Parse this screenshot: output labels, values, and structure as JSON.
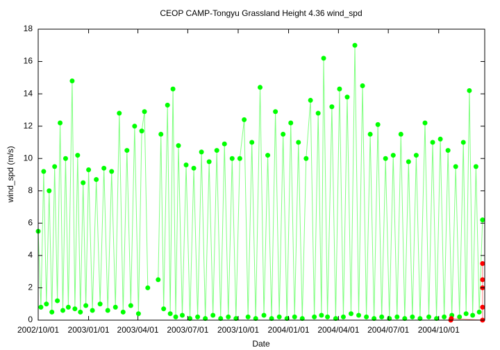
{
  "chart_data": {
    "type": "line",
    "title": "CEOP CAMP-Tongyu Grassland Height 4.36 wind_spd",
    "x_label": "Date",
    "y_label": "wind_spd (m/s)",
    "xlim": [
      "2002/10/01",
      "2004/12/24"
    ],
    "xticks": [
      "2002/10/01",
      "2003/01/01",
      "2003/04/01",
      "2003/07/01",
      "2003/10/01",
      "2004/01/01",
      "2004/04/01",
      "2004/07/01",
      "2004/10/01"
    ],
    "ylim": [
      0,
      18
    ],
    "yticks": [
      0,
      2,
      4,
      6,
      8,
      10,
      12,
      14,
      16,
      18
    ],
    "series": [
      {
        "color": "#00ff00",
        "x": [
          "2002/10/01",
          "2002/10/06",
          "2002/10/11",
          "2002/10/16",
          "2002/10/21",
          "2002/10/26",
          "2002/10/31",
          "2002/11/05",
          "2002/11/10",
          "2002/11/15",
          "2002/11/20",
          "2002/11/25",
          "2002/12/02",
          "2002/12/07",
          "2002/12/12",
          "2002/12/17",
          "2002/12/22",
          "2002/12/27",
          "2003/01/01",
          "2003/01/08",
          "2003/01/15",
          "2003/01/22",
          "2003/01/29",
          "2003/02/05",
          "2003/02/12",
          "2003/02/19",
          "2003/02/26",
          "2003/03/05",
          "2003/03/12",
          "2003/03/19",
          "2003/03/26",
          "2003/04/02",
          "2003/04/08",
          "2003/04/13",
          "2003/04/19",
          "2003/04/28",
          "2003/05/08",
          "2003/05/13",
          "2003/05/18",
          "2003/05/25",
          "2003/05/30",
          "2003/06/04",
          "2003/06/09",
          "2003/06/14",
          "2003/06/21",
          "2003/06/28",
          "2003/07/05",
          "2003/07/12",
          "2003/07/19",
          "2003/07/26",
          "2003/08/02",
          "2003/08/09",
          "2003/08/16",
          "2003/08/23",
          "2003/08/30",
          "2003/09/06",
          "2003/09/13",
          "2003/09/20",
          "2003/09/27",
          "2003/10/04",
          "2003/10/12",
          "2003/10/19",
          "2003/10/26",
          "2003/11/02",
          "2003/11/10",
          "2003/11/17",
          "2003/11/24",
          "2003/12/01",
          "2003/12/08",
          "2003/12/15",
          "2003/12/22",
          "2003/12/29",
          "2004/01/05",
          "2004/01/12",
          "2004/01/19",
          "2004/01/26",
          "2004/02/02",
          "2004/02/10",
          "2004/02/17",
          "2004/02/24",
          "2004/03/01",
          "2004/03/05",
          "2004/03/12",
          "2004/03/20",
          "2004/03/27",
          "2004/04/03",
          "2004/04/10",
          "2004/04/17",
          "2004/04/24",
          "2004/05/01",
          "2004/05/08",
          "2004/05/15",
          "2004/05/22",
          "2004/05/29",
          "2004/06/05",
          "2004/06/12",
          "2004/06/19",
          "2004/06/26",
          "2004/07/03",
          "2004/07/10",
          "2004/07/17",
          "2004/07/24",
          "2004/07/31",
          "2004/08/07",
          "2004/08/14",
          "2004/08/21",
          "2004/08/28",
          "2004/09/06",
          "2004/09/13",
          "2004/09/20",
          "2004/09/27",
          "2004/10/04",
          "2004/10/11",
          "2004/10/18",
          "2004/10/25",
          "2004/11/01",
          "2004/11/08",
          "2004/11/15",
          "2004/11/20",
          "2004/11/26",
          "2004/12/02",
          "2004/12/08",
          "2004/12/14",
          "2004/12/20"
        ],
        "values": [
          5.5,
          0.8,
          9.2,
          1.0,
          8.0,
          0.5,
          9.5,
          1.2,
          12.2,
          0.6,
          10.0,
          0.8,
          14.8,
          0.7,
          10.2,
          0.5,
          8.5,
          0.9,
          9.3,
          0.6,
          8.7,
          1.0,
          9.4,
          0.6,
          9.2,
          0.8,
          12.8,
          0.5,
          10.5,
          0.9,
          12.0,
          0.4,
          11.7,
          12.9,
          2.0,
          null,
          2.5,
          11.5,
          0.7,
          13.3,
          0.4,
          14.3,
          0.2,
          10.8,
          0.3,
          9.6,
          0.1,
          9.4,
          0.2,
          10.4,
          0.1,
          9.8,
          0.3,
          10.5,
          0.1,
          10.9,
          0.2,
          10.0,
          0.1,
          10.0,
          12.4,
          0.2,
          11.0,
          0.1,
          14.4,
          0.3,
          10.2,
          0.1,
          12.9,
          0.2,
          11.5,
          0.1,
          12.2,
          0.2,
          11.0,
          0.1,
          10.0,
          13.6,
          0.2,
          12.8,
          0.3,
          16.2,
          0.2,
          13.2,
          0.1,
          14.3,
          0.2,
          13.8,
          0.4,
          17.0,
          0.3,
          14.5,
          0.2,
          11.5,
          0.1,
          12.1,
          0.2,
          10.0,
          0.1,
          10.2,
          0.2,
          11.5,
          0.1,
          9.8,
          0.2,
          10.2,
          0.1,
          12.2,
          0.2,
          11.0,
          0.1,
          11.2,
          0.2,
          10.5,
          0.3,
          9.5,
          0.2,
          11.0,
          0.4,
          14.2,
          0.3,
          9.5,
          0.5,
          6.2
        ]
      },
      {
        "color": "#ff0000",
        "x": [
          "2004/10/23",
          "2004/10/24",
          "2004/12/20",
          "2004/12/20",
          "2004/12/20",
          "2004/12/20",
          "2004/12/20"
        ],
        "values": [
          0.0,
          0.1,
          0.0,
          0.8,
          2.0,
          3.5,
          2.5
        ]
      }
    ]
  }
}
